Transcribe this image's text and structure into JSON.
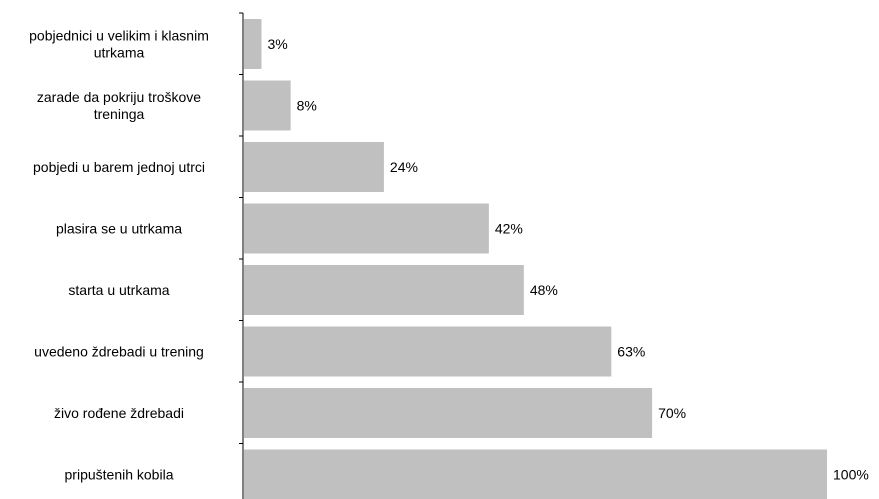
{
  "chart_data": {
    "type": "bar",
    "orientation": "horizontal",
    "title": "",
    "xlabel": "",
    "ylabel": "",
    "categories": [
      [
        "pobjednici u velikim i klasnim",
        "utrkama"
      ],
      [
        "zarade da pokriju troškove",
        "treninga"
      ],
      [
        "pobjedi u barem jednoj utrci"
      ],
      [
        "plasira se u utrkama"
      ],
      [
        "starta u utrkama"
      ],
      [
        "uvedeno ždrebadi u trening"
      ],
      [
        "živo rođene ždrebadi"
      ],
      [
        "pripuštenih kobila"
      ]
    ],
    "values": [
      3,
      8,
      24,
      42,
      48,
      63,
      70,
      100
    ],
    "value_labels": [
      "3%",
      "8%",
      "24%",
      "42%",
      "48%",
      "63%",
      "70%",
      "100%"
    ],
    "xlim": [
      0,
      100
    ],
    "grid": false,
    "legend": "none",
    "bar_color": "#c0c0c0",
    "axis_color": "#000000"
  }
}
